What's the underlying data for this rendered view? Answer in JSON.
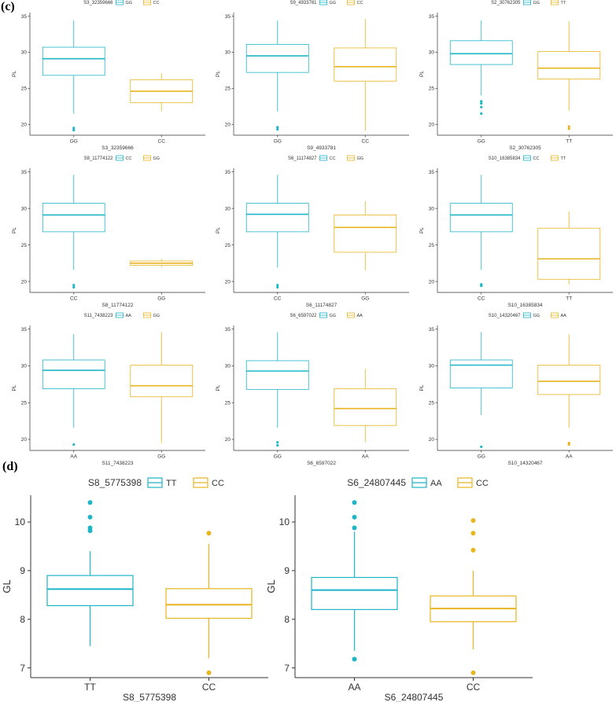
{
  "colors": {
    "teal": "#1FB5C9",
    "gold": "#E8B420",
    "axis": "#333333"
  },
  "panel_labels": {
    "c": "(c)",
    "d": "(d)"
  },
  "chart_data": [
    {
      "panel": "c",
      "type": "boxplot",
      "title": "S3_32359666",
      "xlabel": "S3_32359666",
      "ylabel": "PL",
      "ylim": [
        18.5,
        35.5
      ],
      "yticks": [
        20,
        25,
        30,
        35
      ],
      "series": [
        {
          "name": "GG",
          "color": "teal",
          "min": 21.5,
          "q1": 26.8,
          "median": 29.1,
          "q3": 30.7,
          "max": 34.4,
          "outliers": [
            19.2,
            19.5
          ]
        },
        {
          "name": "CC",
          "color": "gold",
          "min": 21.8,
          "q1": 23.0,
          "median": 24.6,
          "q3": 26.2,
          "max": 27.1,
          "outliers": []
        }
      ]
    },
    {
      "panel": "c",
      "type": "boxplot",
      "title": "S9_4933781",
      "xlabel": "S9_4933781",
      "ylabel": "PL",
      "ylim": [
        18.5,
        35.5
      ],
      "yticks": [
        20,
        25,
        30,
        35
      ],
      "series": [
        {
          "name": "GG",
          "color": "teal",
          "min": 21.8,
          "q1": 27.2,
          "median": 29.5,
          "q3": 31.1,
          "max": 34.4,
          "outliers": [
            19.3,
            19.6
          ]
        },
        {
          "name": "CC",
          "color": "gold",
          "min": 19.1,
          "q1": 26.0,
          "median": 28.0,
          "q3": 30.6,
          "max": 34.6,
          "outliers": []
        }
      ]
    },
    {
      "panel": "c",
      "type": "boxplot",
      "title": "S2_30762305",
      "xlabel": "S2_30762305",
      "ylabel": "PL",
      "ylim": [
        18.5,
        35.5
      ],
      "yticks": [
        20,
        25,
        30,
        35
      ],
      "series": [
        {
          "name": "GG",
          "color": "teal",
          "min": 24.0,
          "q1": 28.3,
          "median": 29.8,
          "q3": 31.6,
          "max": 34.4,
          "outliers": [
            21.5,
            22.4,
            22.9,
            23.2
          ]
        },
        {
          "name": "TT",
          "color": "gold",
          "min": 21.9,
          "q1": 26.3,
          "median": 27.8,
          "q3": 30.1,
          "max": 34.3,
          "outliers": [
            19.4,
            19.7
          ]
        }
      ]
    },
    {
      "panel": "c",
      "type": "boxplot",
      "title": "S8_11774122",
      "xlabel": "S8_11774122",
      "ylabel": "PL",
      "ylim": [
        18.5,
        35.5
      ],
      "yticks": [
        20,
        25,
        30,
        35
      ],
      "series": [
        {
          "name": "CC",
          "color": "teal",
          "min": 21.6,
          "q1": 26.8,
          "median": 29.1,
          "q3": 30.7,
          "max": 34.6,
          "outliers": [
            19.2,
            19.5
          ]
        },
        {
          "name": "GG",
          "color": "gold",
          "min": 21.9,
          "q1": 22.2,
          "median": 22.5,
          "q3": 22.8,
          "max": 23.1,
          "outliers": []
        }
      ]
    },
    {
      "panel": "c",
      "type": "boxplot",
      "title": "S6_11174827",
      "xlabel": "S6_11174827",
      "ylabel": "PL",
      "ylim": [
        18.5,
        35.5
      ],
      "yticks": [
        20,
        25,
        30,
        35
      ],
      "series": [
        {
          "name": "CC",
          "color": "teal",
          "min": 21.9,
          "q1": 26.8,
          "median": 29.2,
          "q3": 30.7,
          "max": 34.6,
          "outliers": [
            19.2,
            19.5
          ]
        },
        {
          "name": "GG",
          "color": "gold",
          "min": 21.5,
          "q1": 24.0,
          "median": 27.4,
          "q3": 29.1,
          "max": 31.0,
          "outliers": []
        }
      ]
    },
    {
      "panel": "c",
      "type": "boxplot",
      "title": "S10_16385834",
      "xlabel": "S10_16385834",
      "ylabel": "PL",
      "ylim": [
        18.5,
        35.5
      ],
      "yticks": [
        20,
        25,
        30,
        35
      ],
      "series": [
        {
          "name": "CC",
          "color": "teal",
          "min": 21.6,
          "q1": 26.8,
          "median": 29.1,
          "q3": 30.7,
          "max": 34.6,
          "outliers": [
            19.4,
            19.6
          ]
        },
        {
          "name": "TT",
          "color": "gold",
          "min": 19.6,
          "q1": 20.3,
          "median": 23.1,
          "q3": 27.3,
          "max": 29.6,
          "outliers": []
        }
      ]
    },
    {
      "panel": "c",
      "type": "boxplot",
      "title": "S11_7438223",
      "xlabel": "S11_7438223",
      "ylabel": "PL",
      "ylim": [
        18.5,
        35.5
      ],
      "yticks": [
        20,
        25,
        30,
        35
      ],
      "series": [
        {
          "name": "AA",
          "color": "teal",
          "min": 21.6,
          "q1": 26.9,
          "median": 29.4,
          "q3": 30.8,
          "max": 34.3,
          "outliers": [
            19.3
          ]
        },
        {
          "name": "GG",
          "color": "gold",
          "min": 19.5,
          "q1": 25.8,
          "median": 27.3,
          "q3": 30.1,
          "max": 34.6,
          "outliers": []
        }
      ]
    },
    {
      "panel": "c",
      "type": "boxplot",
      "title": "S6_6597022",
      "xlabel": "S6_6597022",
      "ylabel": "PL",
      "ylim": [
        18.5,
        35.5
      ],
      "yticks": [
        20,
        25,
        30,
        35
      ],
      "series": [
        {
          "name": "GG",
          "color": "teal",
          "min": 21.6,
          "q1": 26.8,
          "median": 29.3,
          "q3": 30.7,
          "max": 34.6,
          "outliers": [
            19.2,
            19.6
          ]
        },
        {
          "name": "AA",
          "color": "gold",
          "min": 19.6,
          "q1": 21.9,
          "median": 24.2,
          "q3": 26.9,
          "max": 29.6,
          "outliers": []
        }
      ]
    },
    {
      "panel": "c",
      "type": "boxplot",
      "title": "S10_14320467",
      "xlabel": "S10_14320467",
      "ylabel": "PL",
      "ylim": [
        18.5,
        35.5
      ],
      "yticks": [
        20,
        25,
        30,
        35
      ],
      "series": [
        {
          "name": "GG",
          "color": "teal",
          "min": 23.3,
          "q1": 27.0,
          "median": 30.1,
          "q3": 30.8,
          "max": 34.6,
          "outliers": [
            19.0
          ]
        },
        {
          "name": "AA",
          "color": "gold",
          "min": 21.6,
          "q1": 26.1,
          "median": 27.9,
          "q3": 30.1,
          "max": 34.3,
          "outliers": [
            19.3,
            19.5
          ]
        }
      ]
    },
    {
      "panel": "d",
      "type": "boxplot",
      "title": "S8_5775398",
      "xlabel": "S8_5775398",
      "ylabel": "GL",
      "ylim": [
        6.8,
        10.55
      ],
      "yticks": [
        7,
        8,
        9,
        10
      ],
      "series": [
        {
          "name": "TT",
          "color": "teal",
          "min": 7.45,
          "q1": 8.28,
          "median": 8.62,
          "q3": 8.9,
          "max": 9.4,
          "outliers": [
            9.82,
            9.88,
            10.1,
            10.4
          ]
        },
        {
          "name": "CC",
          "color": "gold",
          "min": 7.2,
          "q1": 8.02,
          "median": 8.3,
          "q3": 8.63,
          "max": 9.55,
          "outliers": [
            6.9,
            9.77
          ]
        }
      ]
    },
    {
      "panel": "d",
      "type": "boxplot",
      "title": "S6_24807445",
      "xlabel": "S6_24807445",
      "ylabel": "GL",
      "ylim": [
        6.8,
        10.55
      ],
      "yticks": [
        7,
        8,
        9,
        10
      ],
      "series": [
        {
          "name": "AA",
          "color": "teal",
          "min": 7.35,
          "q1": 8.2,
          "median": 8.6,
          "q3": 8.86,
          "max": 9.8,
          "outliers": [
            7.18,
            9.88,
            10.1,
            10.4
          ]
        },
        {
          "name": "CC",
          "color": "gold",
          "min": 7.38,
          "q1": 7.95,
          "median": 8.22,
          "q3": 8.48,
          "max": 9.0,
          "outliers": [
            6.9,
            9.42,
            9.77,
            10.03
          ]
        }
      ]
    }
  ]
}
